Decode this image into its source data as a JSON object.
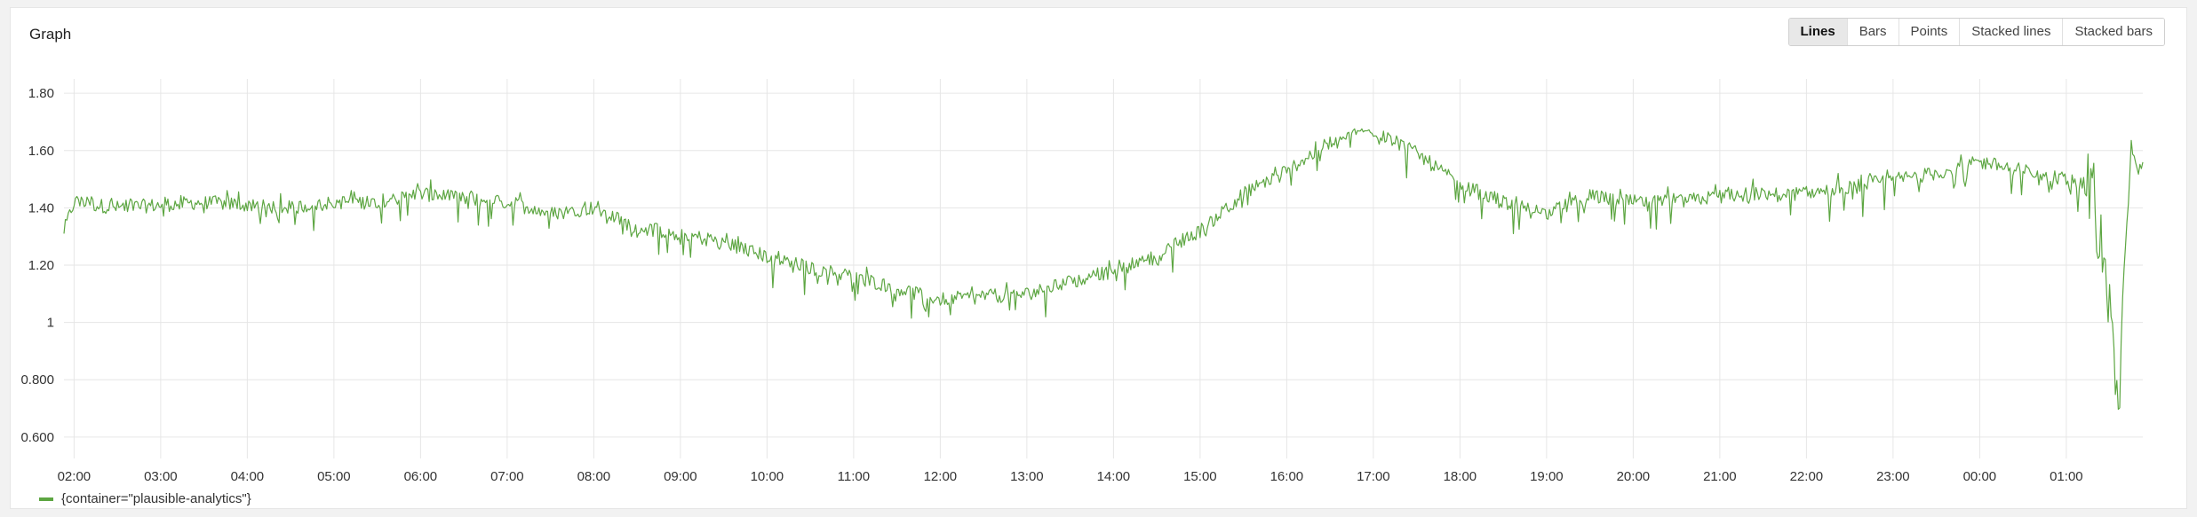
{
  "panel": {
    "title": "Graph"
  },
  "modes": [
    {
      "label": "Lines",
      "active": true
    },
    {
      "label": "Bars",
      "active": false
    },
    {
      "label": "Points",
      "active": false
    },
    {
      "label": "Stacked lines",
      "active": false
    },
    {
      "label": "Stacked bars",
      "active": false
    }
  ],
  "colors": {
    "series": "#5da642",
    "grid": "#e6e6e6"
  },
  "chart_data": {
    "type": "line",
    "title": "",
    "xlabel": "",
    "ylabel": "",
    "ylim": [
      0.55,
      1.85
    ],
    "xlim": [
      "01:53",
      "01:53"
    ],
    "y_ticks": [
      0.6,
      0.8,
      1,
      1.2,
      1.4,
      1.6,
      1.8
    ],
    "y_tick_labels": [
      "0.600",
      "0.800",
      "1",
      "1.20",
      "1.40",
      "1.60",
      "1.80"
    ],
    "x_tick_labels": [
      "02:00",
      "03:00",
      "04:00",
      "05:00",
      "06:00",
      "07:00",
      "08:00",
      "09:00",
      "10:00",
      "11:00",
      "12:00",
      "13:00",
      "14:00",
      "15:00",
      "16:00",
      "17:00",
      "18:00",
      "19:00",
      "20:00",
      "21:00",
      "22:00",
      "23:00",
      "00:00",
      "01:00"
    ],
    "grid": true,
    "legend": "bottom-left",
    "series": [
      {
        "name": "{container=\"plausible-analytics\"}",
        "x": [
          "01:53",
          "02:00",
          "02:30",
          "03:00",
          "03:30",
          "04:00",
          "04:30",
          "05:00",
          "05:30",
          "06:00",
          "06:30",
          "07:00",
          "07:30",
          "08:00",
          "08:30",
          "09:00",
          "09:30",
          "10:00",
          "10:30",
          "11:00",
          "11:30",
          "12:00",
          "12:30",
          "13:00",
          "13:30",
          "14:00",
          "14:30",
          "15:00",
          "15:30",
          "16:00",
          "16:30",
          "17:00",
          "17:30",
          "18:00",
          "18:30",
          "19:00",
          "19:30",
          "20:00",
          "20:30",
          "21:00",
          "21:30",
          "22:00",
          "22:30",
          "23:00",
          "23:30",
          "00:00",
          "00:30",
          "01:00",
          "01:20",
          "01:30",
          "01:36",
          "01:40",
          "01:45",
          "01:50",
          "01:53"
        ],
        "values": [
          1.32,
          1.42,
          1.4,
          1.41,
          1.42,
          1.41,
          1.4,
          1.42,
          1.42,
          1.45,
          1.43,
          1.42,
          1.38,
          1.4,
          1.33,
          1.31,
          1.28,
          1.23,
          1.19,
          1.16,
          1.12,
          1.08,
          1.09,
          1.1,
          1.14,
          1.18,
          1.23,
          1.32,
          1.45,
          1.53,
          1.63,
          1.67,
          1.59,
          1.48,
          1.42,
          1.38,
          1.44,
          1.42,
          1.42,
          1.44,
          1.45,
          1.45,
          1.47,
          1.5,
          1.52,
          1.56,
          1.53,
          1.5,
          1.48,
          0.95,
          0.68,
          1.2,
          1.62,
          1.54,
          1.56
        ],
        "noise": 0.06
      }
    ]
  }
}
